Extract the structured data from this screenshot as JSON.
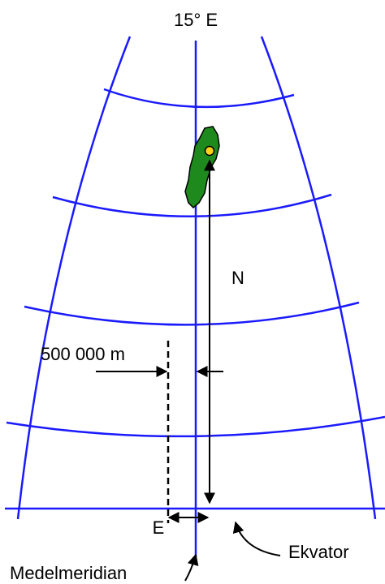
{
  "meridian_label": "15° E",
  "north_label": "N",
  "offset_label": "500 000 m",
  "east_label": "E",
  "equator_label": "Ekvator",
  "central_meridian_label": "Medelmeridian"
}
